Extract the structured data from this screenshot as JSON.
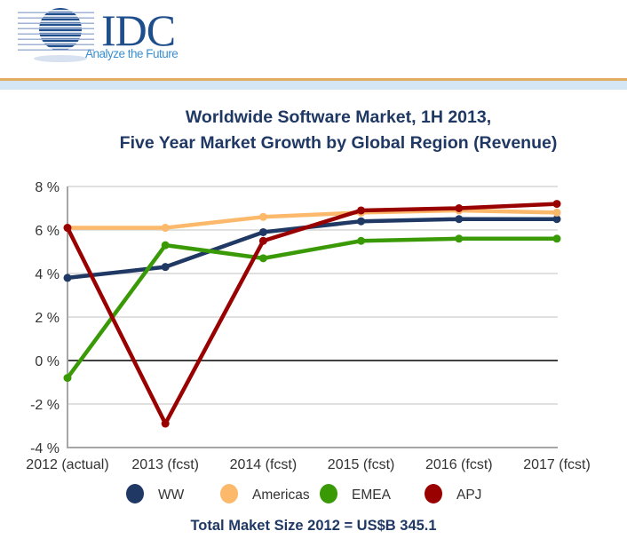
{
  "logo": {
    "name": "IDC",
    "tagline": "Analyze the Future",
    "icon": "striped-globe-icon"
  },
  "footer": "Total Maket Size 2012 = US$B 345.1",
  "chart_data": {
    "type": "line",
    "title": [
      "Worldwide Software Market, 1H 2013,",
      "Five Year Market Growth by Global Region (Revenue)"
    ],
    "xlabel": "",
    "ylabel": "",
    "categories": [
      "2012 (actual)",
      "2013 (fcst)",
      "2014 (fcst)",
      "2015 (fcst)",
      "2016 (fcst)",
      "2017 (fcst)"
    ],
    "ylim": [
      -4,
      8
    ],
    "yticks": [
      8,
      6,
      4,
      2,
      0,
      -2,
      -4
    ],
    "ytick_labels": [
      "8 %",
      "6 %",
      "4 %",
      "2 %",
      "0 %",
      "-2 %",
      "-4 %"
    ],
    "grid": true,
    "legend_position": "bottom",
    "series": [
      {
        "name": "WW",
        "color": "#1f3864",
        "values": [
          3.8,
          4.3,
          5.9,
          6.4,
          6.5,
          6.5
        ]
      },
      {
        "name": "Americas",
        "color": "#fdb96b",
        "values": [
          6.1,
          6.1,
          6.6,
          6.8,
          6.9,
          6.8
        ]
      },
      {
        "name": "EMEA",
        "color": "#3a9a06",
        "values": [
          -0.8,
          5.3,
          4.7,
          5.5,
          5.6,
          5.6
        ]
      },
      {
        "name": "APJ",
        "color": "#990000",
        "values": [
          6.1,
          -2.9,
          5.5,
          6.9,
          7.0,
          7.2
        ]
      }
    ]
  }
}
